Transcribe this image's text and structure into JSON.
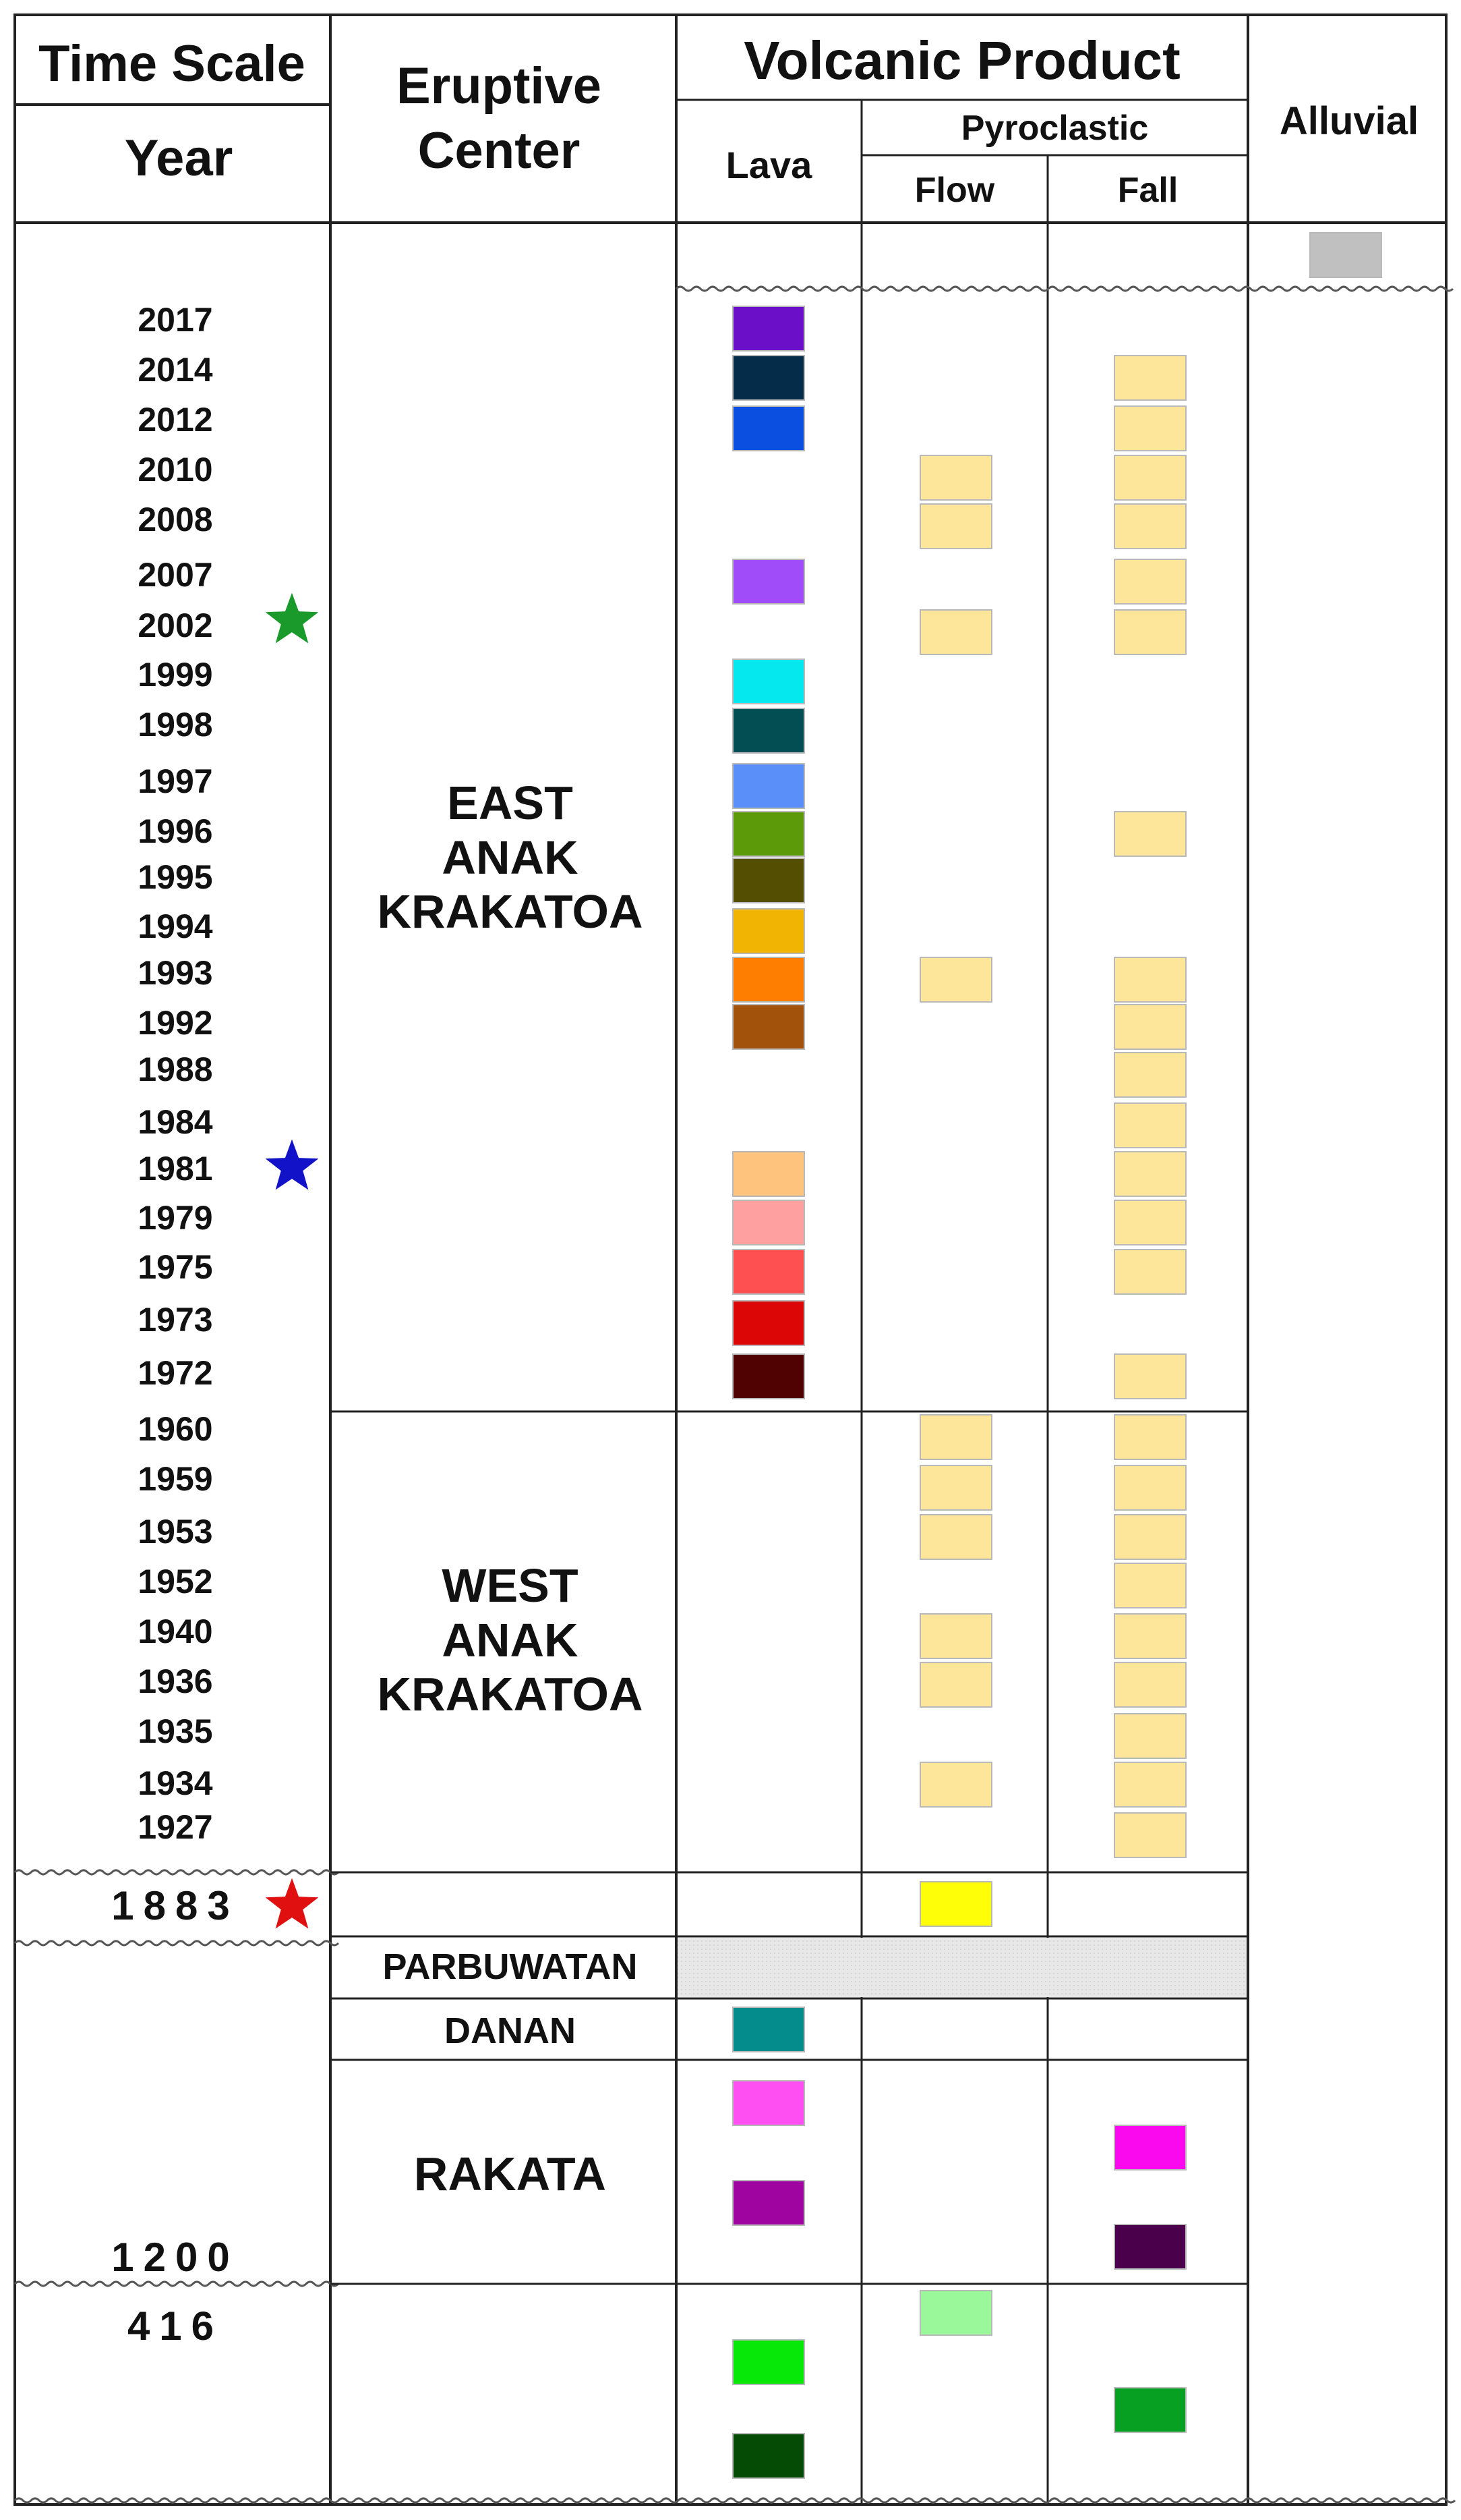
{
  "headers": {
    "time_scale": "Time Scale",
    "year": "Year",
    "eruptive_center": "Eruptive Center",
    "volcanic_product": "Volcanic Product",
    "lava": "Lava",
    "pyroclastic": "Pyroclastic",
    "flow": "Flow",
    "fall": "Fall",
    "alluvial": "Alluvial"
  },
  "eruptive_centers": [
    {
      "name": "EAST ANAK KRAKATOA",
      "lines": [
        "EAST",
        "ANAK",
        "KRAKATOA"
      ]
    },
    {
      "name": "WEST ANAK KRAKATOA",
      "lines": [
        "WEST",
        "ANAK",
        "KRAKATOA"
      ]
    },
    {
      "name": "PARBUWATAN",
      "lines": [
        "PARBUWATAN"
      ]
    },
    {
      "name": "DANAN",
      "lines": [
        "DANAN"
      ]
    },
    {
      "name": "RAKATA",
      "lines": [
        "RAKATA"
      ]
    }
  ],
  "years": [
    "2017",
    "2014",
    "2012",
    "2010",
    "2008",
    "2007",
    "2002",
    "1999",
    "1998",
    "1997",
    "1996",
    "1995",
    "1994",
    "1993",
    "1992",
    "1988",
    "1984",
    "1981",
    "1979",
    "1975",
    "1973",
    "1972",
    "1960",
    "1959",
    "1953",
    "1952",
    "1940",
    "1936",
    "1935",
    "1934",
    "1927",
    "1883",
    "1200",
    "416"
  ],
  "markers": [
    {
      "year": "2002",
      "icon": "star-icon",
      "color": "#1a9a2a"
    },
    {
      "year": "1981",
      "icon": "star-icon",
      "color": "#1212c8"
    },
    {
      "year": "1883",
      "icon": "star-icon",
      "color": "#e01010"
    }
  ],
  "chart_data": {
    "type": "table",
    "columns": [
      "Lava",
      "Pyroclastic Flow",
      "Pyroclastic Fall",
      "Alluvial"
    ],
    "pyroclastic_color": "#fde59a",
    "alluvial": [
      {
        "period": "present",
        "color": "#c0c0c0"
      }
    ],
    "lava": [
      {
        "year": "2017",
        "color": "#6b0fc8"
      },
      {
        "year": "2014",
        "color": "#052d4a"
      },
      {
        "year": "2012",
        "color": "#0a4fe0"
      },
      {
        "year": "2007",
        "color": "#a04cf8"
      },
      {
        "year": "1999",
        "color": "#05e8ee"
      },
      {
        "year": "1998",
        "color": "#034e52"
      },
      {
        "year": "1997",
        "color": "#5a8ef8"
      },
      {
        "year": "1996",
        "color": "#5c9a0a"
      },
      {
        "year": "1995",
        "color": "#544e02"
      },
      {
        "year": "1994",
        "color": "#f2b402"
      },
      {
        "year": "1993",
        "color": "#fe7e02"
      },
      {
        "year": "1992",
        "color": "#a2520a"
      },
      {
        "year": "1981",
        "color": "#fec47e"
      },
      {
        "year": "1979",
        "color": "#fea0a0"
      },
      {
        "year": "1975",
        "color": "#fe5050"
      },
      {
        "year": "1973",
        "color": "#dc0606"
      },
      {
        "year": "1972",
        "color": "#500202"
      },
      {
        "center": "DANAN",
        "color": "#048c8c"
      },
      {
        "center": "RAKATA",
        "color": "#fe50f2"
      },
      {
        "center": "RAKATA",
        "color": "#a004a0"
      },
      {
        "year": "416",
        "color": "#08e808"
      },
      {
        "year": "416",
        "color": "#054a05"
      }
    ],
    "pyroclastic_flow": [
      {
        "year": "2010"
      },
      {
        "year": "2008"
      },
      {
        "year": "2002"
      },
      {
        "year": "1993"
      },
      {
        "year": "1960"
      },
      {
        "year": "1959"
      },
      {
        "year": "1953"
      },
      {
        "year": "1940"
      },
      {
        "year": "1936"
      },
      {
        "year": "1934"
      },
      {
        "year": "1883",
        "color": "#fefe08"
      },
      {
        "year": "416",
        "color": "#9af89a"
      }
    ],
    "pyroclastic_fall": [
      {
        "year": "2014"
      },
      {
        "year": "2012"
      },
      {
        "year": "2010"
      },
      {
        "year": "2008"
      },
      {
        "year": "2007"
      },
      {
        "year": "2002"
      },
      {
        "year": "1996"
      },
      {
        "year": "1993"
      },
      {
        "year": "1992"
      },
      {
        "year": "1988"
      },
      {
        "year": "1984"
      },
      {
        "year": "1981"
      },
      {
        "year": "1979"
      },
      {
        "year": "1975"
      },
      {
        "year": "1972"
      },
      {
        "year": "1960"
      },
      {
        "year": "1959"
      },
      {
        "year": "1953"
      },
      {
        "year": "1952"
      },
      {
        "year": "1940"
      },
      {
        "year": "1936"
      },
      {
        "year": "1935"
      },
      {
        "year": "1934"
      },
      {
        "year": "1927"
      },
      {
        "center": "RAKATA",
        "color": "#fa08ee"
      },
      {
        "center": "RAKATA",
        "color": "#4a004a"
      },
      {
        "year": "416",
        "color": "#08a022"
      }
    ]
  }
}
